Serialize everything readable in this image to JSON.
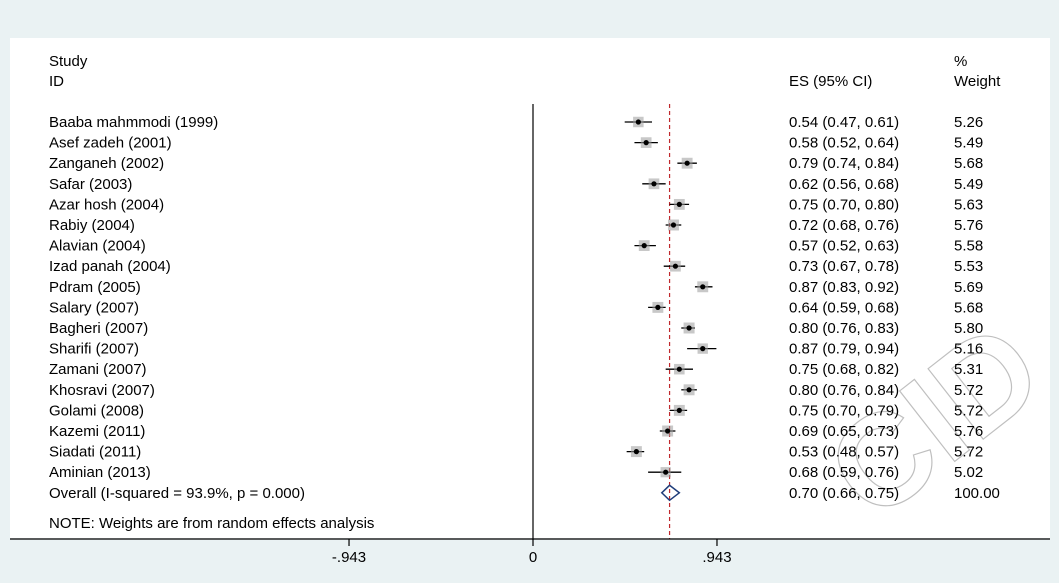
{
  "header": {
    "study_label": "Study",
    "id_label": "ID",
    "es_label": "ES (95% CI)",
    "pct_label": "%",
    "weight_label": "Weight"
  },
  "note": "NOTE: Weights are from random effects analysis",
  "watermark_text": "CID",
  "colors": {
    "plot_background": "#eaf2f3",
    "panel_background": "#ffffff",
    "reference_line": "#c0282d",
    "diamond": "#1f3d7a",
    "ci_line": "#000000",
    "marker": "#000000"
  },
  "chart_data": {
    "type": "forest",
    "xlim": [
      -1.25,
      1.6
    ],
    "x_ticks": [
      -0.943,
      0,
      0.943
    ],
    "x_tick_labels": [
      "-.943",
      "0",
      ".943"
    ],
    "null_line": 0,
    "overall_line": 0.7,
    "studies": [
      {
        "label": "Baaba mahmmodi (1999)",
        "es": 0.54,
        "lo": 0.47,
        "hi": 0.61,
        "weight": 5.26,
        "ci_text": "0.54 (0.47, 0.61)",
        "weight_text": "5.26"
      },
      {
        "label": "Asef zadeh (2001)",
        "es": 0.58,
        "lo": 0.52,
        "hi": 0.64,
        "weight": 5.49,
        "ci_text": "0.58 (0.52, 0.64)",
        "weight_text": "5.49"
      },
      {
        "label": "Zanganeh (2002)",
        "es": 0.79,
        "lo": 0.74,
        "hi": 0.84,
        "weight": 5.68,
        "ci_text": "0.79 (0.74, 0.84)",
        "weight_text": "5.68"
      },
      {
        "label": "Safar (2003)",
        "es": 0.62,
        "lo": 0.56,
        "hi": 0.68,
        "weight": 5.49,
        "ci_text": "0.62 (0.56, 0.68)",
        "weight_text": "5.49"
      },
      {
        "label": "Azar hosh (2004)",
        "es": 0.75,
        "lo": 0.7,
        "hi": 0.8,
        "weight": 5.63,
        "ci_text": "0.75 (0.70, 0.80)",
        "weight_text": "5.63"
      },
      {
        "label": "Rabiy (2004)",
        "es": 0.72,
        "lo": 0.68,
        "hi": 0.76,
        "weight": 5.76,
        "ci_text": "0.72 (0.68, 0.76)",
        "weight_text": "5.76"
      },
      {
        "label": "Alavian (2004)",
        "es": 0.57,
        "lo": 0.52,
        "hi": 0.63,
        "weight": 5.58,
        "ci_text": "0.57 (0.52, 0.63)",
        "weight_text": "5.58"
      },
      {
        "label": "Izad panah (2004)",
        "es": 0.73,
        "lo": 0.67,
        "hi": 0.78,
        "weight": 5.53,
        "ci_text": "0.73 (0.67, 0.78)",
        "weight_text": "5.53"
      },
      {
        "label": "Pdram (2005)",
        "es": 0.87,
        "lo": 0.83,
        "hi": 0.92,
        "weight": 5.69,
        "ci_text": "0.87 (0.83, 0.92)",
        "weight_text": "5.69"
      },
      {
        "label": "Salary (2007)",
        "es": 0.64,
        "lo": 0.59,
        "hi": 0.68,
        "weight": 5.68,
        "ci_text": "0.64 (0.59, 0.68)",
        "weight_text": "5.68"
      },
      {
        "label": "Bagheri (2007)",
        "es": 0.8,
        "lo": 0.76,
        "hi": 0.83,
        "weight": 5.8,
        "ci_text": "0.80 (0.76, 0.83)",
        "weight_text": "5.80"
      },
      {
        "label": "Sharifi (2007)",
        "es": 0.87,
        "lo": 0.79,
        "hi": 0.94,
        "weight": 5.16,
        "ci_text": "0.87 (0.79, 0.94)",
        "weight_text": "5.16"
      },
      {
        "label": "Zamani (2007)",
        "es": 0.75,
        "lo": 0.68,
        "hi": 0.82,
        "weight": 5.31,
        "ci_text": "0.75 (0.68, 0.82)",
        "weight_text": "5.31"
      },
      {
        "label": "Khosravi (2007)",
        "es": 0.8,
        "lo": 0.76,
        "hi": 0.84,
        "weight": 5.72,
        "ci_text": "0.80 (0.76, 0.84)",
        "weight_text": "5.72"
      },
      {
        "label": "Golami (2008)",
        "es": 0.75,
        "lo": 0.7,
        "hi": 0.79,
        "weight": 5.72,
        "ci_text": "0.75 (0.70, 0.79)",
        "weight_text": "5.72"
      },
      {
        "label": "Kazemi (2011)",
        "es": 0.69,
        "lo": 0.65,
        "hi": 0.73,
        "weight": 5.76,
        "ci_text": "0.69 (0.65, 0.73)",
        "weight_text": "5.76"
      },
      {
        "label": "Siadati (2011)",
        "es": 0.53,
        "lo": 0.48,
        "hi": 0.57,
        "weight": 5.72,
        "ci_text": "0.53 (0.48, 0.57)",
        "weight_text": "5.72"
      },
      {
        "label": "Aminian (2013)",
        "es": 0.68,
        "lo": 0.59,
        "hi": 0.76,
        "weight": 5.02,
        "ci_text": "0.68 (0.59, 0.76)",
        "weight_text": "5.02"
      }
    ],
    "overall": {
      "label": "Overall  (I-squared = 93.9%, p = 0.000)",
      "es": 0.7,
      "lo": 0.66,
      "hi": 0.75,
      "weight": 100.0,
      "ci_text": "0.70 (0.66, 0.75)",
      "weight_text": "100.00"
    }
  }
}
